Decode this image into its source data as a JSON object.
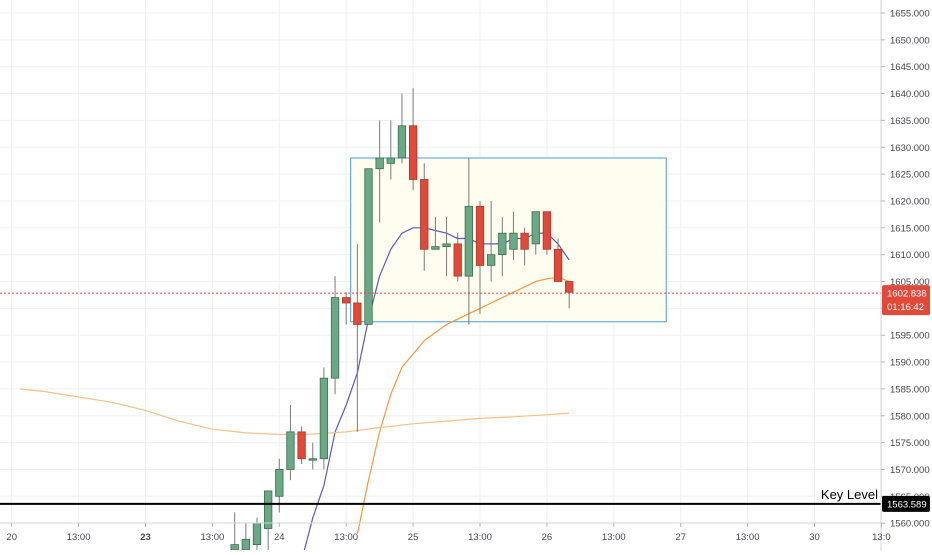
{
  "chart_data": {
    "type": "candlestick",
    "title": "",
    "xlabel": "",
    "ylabel": "",
    "ylim": [
      1556,
      1658
    ],
    "y_ticks": [
      "1560.000",
      "1565.000",
      "1570.000",
      "1575.000",
      "1580.000",
      "1585.000",
      "1590.000",
      "1595.000",
      "1600.000",
      "1605.000",
      "1610.000",
      "1615.000",
      "1620.000",
      "1625.000",
      "1630.000",
      "1635.000",
      "1640.000",
      "1645.000",
      "1650.000",
      "1655.000"
    ],
    "x_tick_labels": [
      {
        "label": "20",
        "bar": -1,
        "bold": false
      },
      {
        "label": "13:00",
        "bar": 5,
        "bold": false
      },
      {
        "label": "23",
        "bar": 11,
        "bold": true
      },
      {
        "label": "13:00",
        "bar": 17,
        "bold": false
      },
      {
        "label": "24",
        "bar": 23,
        "bold": false
      },
      {
        "label": "13:00",
        "bar": 29,
        "bold": false
      },
      {
        "label": "25",
        "bar": 35,
        "bold": false
      },
      {
        "label": "13:00",
        "bar": 41,
        "bold": false
      },
      {
        "label": "26",
        "bar": 47,
        "bold": false
      },
      {
        "label": "13:00",
        "bar": 53,
        "bold": false
      },
      {
        "label": "27",
        "bar": 59,
        "bold": false
      },
      {
        "label": "13:00",
        "bar": 65,
        "bold": false
      },
      {
        "label": "30",
        "bar": 71,
        "bold": false
      },
      {
        "label": "13:0",
        "bar": 77,
        "bold": false
      }
    ],
    "candles": [
      {
        "bar": 19,
        "o": 1555,
        "h": 1562,
        "l": 1555,
        "c": 1556
      },
      {
        "bar": 20,
        "o": 1555,
        "h": 1560,
        "l": 1555,
        "c": 1557
      },
      {
        "bar": 21,
        "o": 1556,
        "h": 1561,
        "l": 1555,
        "c": 1560
      },
      {
        "bar": 22,
        "o": 1559,
        "h": 1566,
        "l": 1555,
        "c": 1566
      },
      {
        "bar": 23,
        "o": 1565,
        "h": 1572,
        "l": 1562,
        "c": 1570
      },
      {
        "bar": 24,
        "o": 1570,
        "h": 1582,
        "l": 1568,
        "c": 1577
      },
      {
        "bar": 25,
        "o": 1577,
        "h": 1578,
        "l": 1571,
        "c": 1572
      },
      {
        "bar": 26,
        "o": 1572,
        "h": 1575,
        "l": 1570,
        "c": 1572
      },
      {
        "bar": 27,
        "o": 1572,
        "h": 1589,
        "l": 1570,
        "c": 1587
      },
      {
        "bar": 28,
        "o": 1587,
        "h": 1606,
        "l": 1584,
        "c": 1602
      },
      {
        "bar": 29,
        "o": 1602,
        "h": 1603,
        "l": 1597,
        "c": 1601
      },
      {
        "bar": 30,
        "o": 1601,
        "h": 1612,
        "l": 1577,
        "c": 1597
      },
      {
        "bar": 31,
        "o": 1597,
        "h": 1626,
        "l": 1597,
        "c": 1626
      },
      {
        "bar": 32,
        "o": 1626,
        "h": 1635,
        "l": 1616,
        "c": 1628
      },
      {
        "bar": 33,
        "o": 1627,
        "h": 1635,
        "l": 1624,
        "c": 1628
      },
      {
        "bar": 34,
        "o": 1628,
        "h": 1640,
        "l": 1627,
        "c": 1634
      },
      {
        "bar": 35,
        "o": 1634,
        "h": 1641,
        "l": 1622,
        "c": 1624
      },
      {
        "bar": 36,
        "o": 1624,
        "h": 1627,
        "l": 1607,
        "c": 1611
      },
      {
        "bar": 37,
        "o": 1611,
        "h": 1617,
        "l": 1611,
        "c": 1611.5
      },
      {
        "bar": 38,
        "o": 1611.5,
        "h": 1617,
        "l": 1606,
        "c": 1612
      },
      {
        "bar": 39,
        "o": 1612,
        "h": 1614,
        "l": 1605,
        "c": 1606
      },
      {
        "bar": 40,
        "o": 1606,
        "h": 1628,
        "l": 1597,
        "c": 1619
      },
      {
        "bar": 41,
        "o": 1619,
        "h": 1620,
        "l": 1599,
        "c": 1608
      },
      {
        "bar": 42,
        "o": 1608,
        "h": 1620,
        "l": 1605,
        "c": 1610
      },
      {
        "bar": 43,
        "o": 1610,
        "h": 1617,
        "l": 1606,
        "c": 1614
      },
      {
        "bar": 44,
        "o": 1611,
        "h": 1618,
        "l": 1609,
        "c": 1614
      },
      {
        "bar": 45,
        "o": 1614,
        "h": 1615,
        "l": 1608,
        "c": 1611
      },
      {
        "bar": 46,
        "o": 1612,
        "h": 1618,
        "l": 1610,
        "c": 1618
      },
      {
        "bar": 47,
        "o": 1618,
        "h": 1618,
        "l": 1610,
        "c": 1611
      },
      {
        "bar": 48,
        "o": 1611,
        "h": 1613,
        "l": 1605,
        "c": 1605
      },
      {
        "bar": 49,
        "o": 1605,
        "h": 1605,
        "l": 1600,
        "c": 1603
      }
    ],
    "moving_averages": [
      {
        "color": "#5b5bb5",
        "points": [
          [
            25,
            1553
          ],
          [
            26,
            1561
          ],
          [
            27,
            1567
          ],
          [
            28,
            1577
          ],
          [
            29,
            1582
          ],
          [
            30,
            1588
          ],
          [
            31,
            1598
          ],
          [
            32,
            1606
          ],
          [
            33,
            1611
          ],
          [
            34,
            1614
          ],
          [
            35,
            1615
          ],
          [
            36,
            1615
          ],
          [
            37,
            1614.5
          ],
          [
            38,
            1614
          ],
          [
            39,
            1613
          ],
          [
            40,
            1613
          ],
          [
            41,
            1612
          ],
          [
            42,
            1612
          ],
          [
            43,
            1612
          ],
          [
            44,
            1613
          ],
          [
            45,
            1613
          ],
          [
            46,
            1614
          ],
          [
            47,
            1614
          ],
          [
            48,
            1612
          ],
          [
            49,
            1609
          ]
        ]
      },
      {
        "color": "#f39a3a",
        "points": [
          [
            30,
            1558
          ],
          [
            31,
            1568
          ],
          [
            32,
            1577
          ],
          [
            33,
            1584
          ],
          [
            34,
            1589
          ],
          [
            35,
            1591.5
          ],
          [
            36,
            1594
          ],
          [
            37,
            1595.5
          ],
          [
            38,
            1597
          ],
          [
            39,
            1598
          ],
          [
            40,
            1599
          ],
          [
            41,
            1600
          ],
          [
            42,
            1601
          ],
          [
            43,
            1602
          ],
          [
            44,
            1603
          ],
          [
            45,
            1604
          ],
          [
            46,
            1605
          ],
          [
            47,
            1605.5
          ],
          [
            48,
            1605.8
          ],
          [
            49,
            1605
          ]
        ]
      },
      {
        "color": "#f5c088",
        "points": [
          [
            -0.3,
            1585
          ],
          [
            2,
            1584.5
          ],
          [
            5,
            1583.5
          ],
          [
            8,
            1582.5
          ],
          [
            11,
            1581
          ],
          [
            14,
            1579
          ],
          [
            17,
            1577.5
          ],
          [
            20,
            1576.8
          ],
          [
            23,
            1576.5
          ],
          [
            26,
            1576.6
          ],
          [
            29,
            1577
          ],
          [
            32,
            1577.8
          ],
          [
            35,
            1578.5
          ],
          [
            38,
            1579
          ],
          [
            41,
            1579.5
          ],
          [
            44,
            1579.8
          ],
          [
            47,
            1580.2
          ],
          [
            49,
            1580.5
          ]
        ]
      }
    ],
    "box": {
      "bar_start": 29.4,
      "bar_end": 57.7,
      "price_top": 1628,
      "price_bottom": 1597.5
    },
    "current_price": {
      "value": "1602.838",
      "price": 1602.838,
      "countdown": "01:16:42",
      "color": "#e04a3a"
    },
    "key_level": {
      "label": "Key Level",
      "value": "1563.589",
      "price": 1563.589
    },
    "colors": {
      "up": "#6aa886",
      "up_border": "#3c6e4e",
      "down": "#e04a3a",
      "down_border": "#a83628",
      "wick": "#7a7a7a",
      "box": "#4a9ed8",
      "box_fill": "#fffcf0",
      "grid": "#eef0f2",
      "axis_text": "#434651",
      "key_line": "#000000"
    }
  }
}
